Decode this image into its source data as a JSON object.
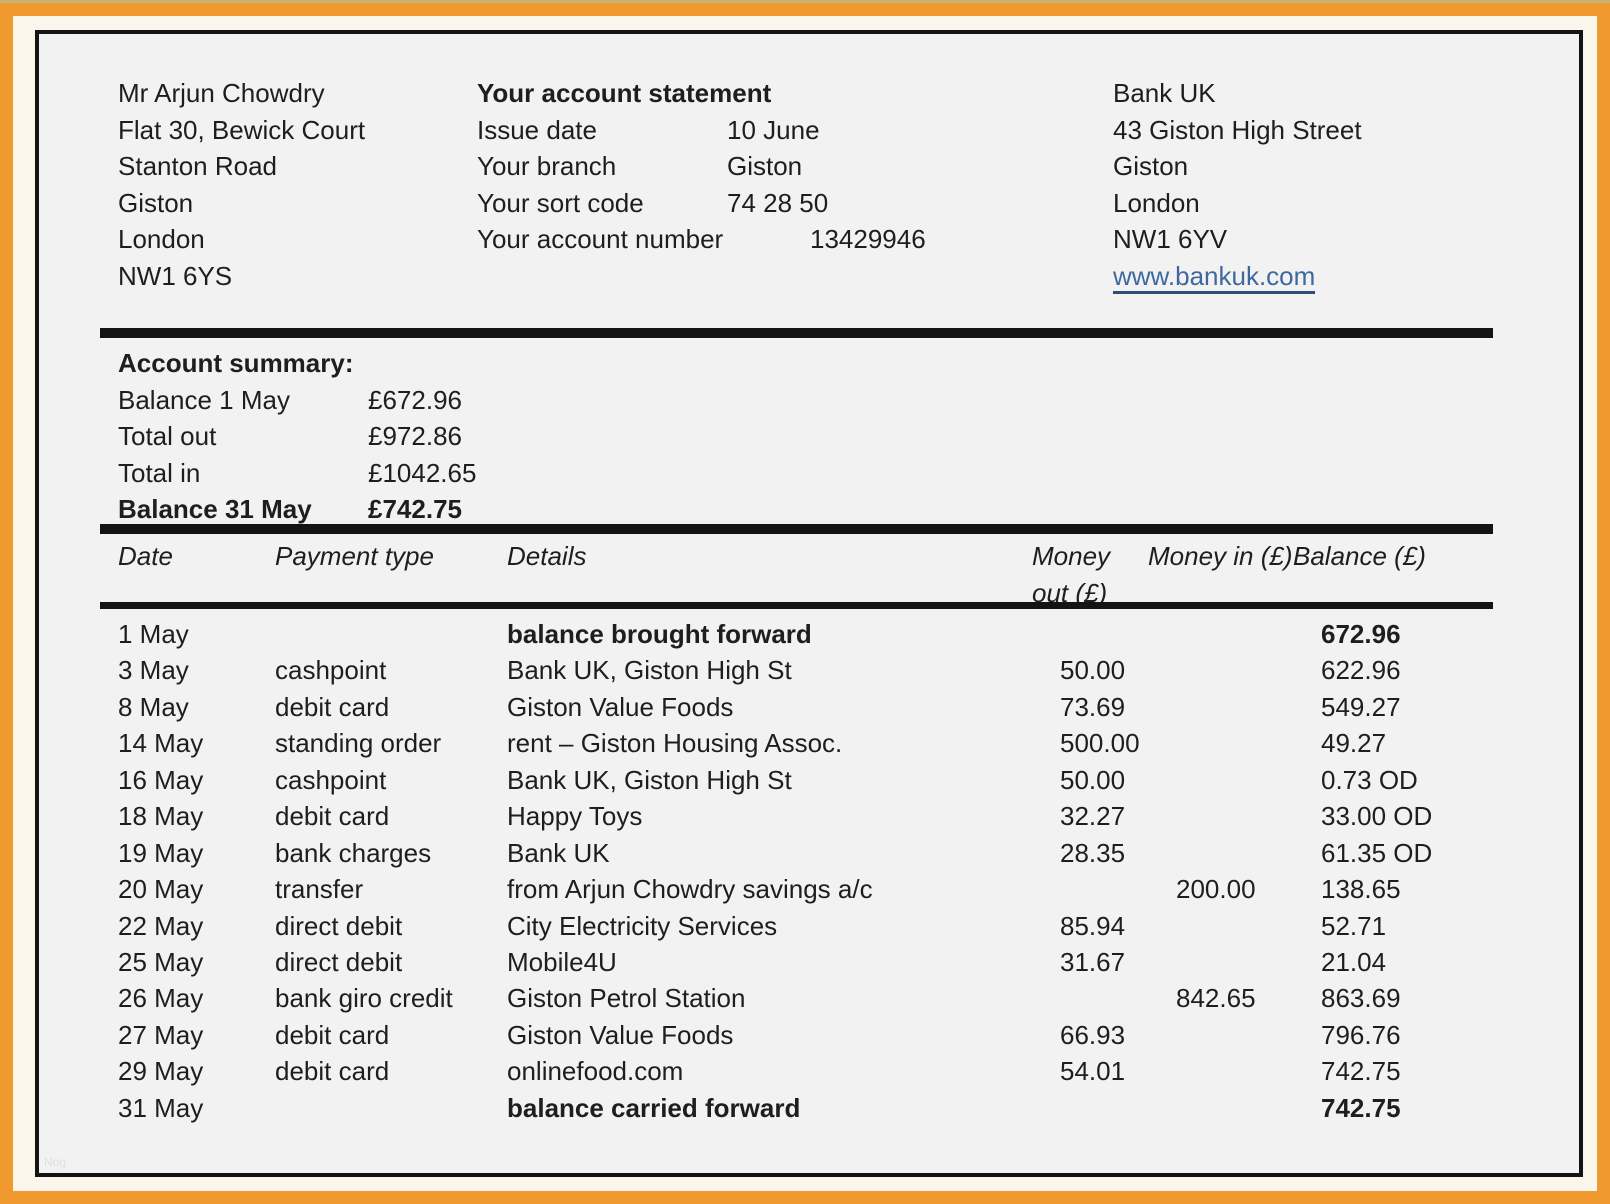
{
  "customer_address": {
    "lines": [
      "Mr Arjun Chowdry",
      "Flat 30, Bewick Court",
      "Stanton Road",
      "Giston",
      "London",
      "NW1 6YS"
    ]
  },
  "statement_info": {
    "title": "Your account statement",
    "rows": [
      {
        "label": "Issue date",
        "value": "10 June"
      },
      {
        "label": "Your branch",
        "value": "Giston"
      },
      {
        "label": "Your sort code",
        "value": "74 28 50"
      },
      {
        "label": "Your account number",
        "value": "13429946"
      }
    ]
  },
  "bank_info": {
    "lines": [
      "Bank UK",
      "43 Giston High Street",
      "Giston",
      "London",
      "NW1 6YV"
    ],
    "website": "www.bankuk.com"
  },
  "account_summary": {
    "title": "Account summary:",
    "rows": [
      {
        "label": "Balance 1 May",
        "value": "£672.96",
        "bold": false
      },
      {
        "label": "Total out",
        "value": "£972.86",
        "bold": false
      },
      {
        "label": "Total in",
        "value": "£1042.65",
        "bold": false
      },
      {
        "label": "Balance 31 May",
        "value": "£742.75",
        "bold": true
      }
    ]
  },
  "transactions": {
    "headers": [
      "Date",
      "Payment type",
      "Details",
      "Money out (£)",
      "Money in (£)",
      "Balance (£)"
    ],
    "rows": [
      {
        "date": "1 May",
        "payment_type": "",
        "details": "balance brought forward",
        "money_out": "",
        "money_in": "",
        "balance": "672.96",
        "emphasis": true
      },
      {
        "date": "3 May",
        "payment_type": "cashpoint",
        "details": "Bank UK, Giston High St",
        "money_out": "50.00",
        "money_in": "",
        "balance": "622.96",
        "emphasis": false
      },
      {
        "date": "8 May",
        "payment_type": "debit card",
        "details": "Giston Value Foods",
        "money_out": "73.69",
        "money_in": "",
        "balance": "549.27",
        "emphasis": false
      },
      {
        "date": "14 May",
        "payment_type": "standing order",
        "details": "rent – Giston Housing Assoc.",
        "money_out": "500.00",
        "money_in": "",
        "balance": "49.27",
        "emphasis": false
      },
      {
        "date": "16 May",
        "payment_type": "cashpoint",
        "details": "Bank UK, Giston High St",
        "money_out": "50.00",
        "money_in": "",
        "balance": "0.73 OD",
        "emphasis": false
      },
      {
        "date": "18 May",
        "payment_type": "debit card",
        "details": "Happy Toys",
        "money_out": "32.27",
        "money_in": "",
        "balance": "33.00 OD",
        "emphasis": false
      },
      {
        "date": "19 May",
        "payment_type": "bank charges",
        "details": "Bank UK",
        "money_out": "28.35",
        "money_in": "",
        "balance": "61.35 OD",
        "emphasis": false
      },
      {
        "date": "20 May",
        "payment_type": "transfer",
        "details": "from Arjun Chowdry savings a/c",
        "money_out": "",
        "money_in": "200.00",
        "balance": "138.65",
        "emphasis": false
      },
      {
        "date": "22 May",
        "payment_type": "direct debit",
        "details": "City Electricity Services",
        "money_out": "85.94",
        "money_in": "",
        "balance": "52.71",
        "emphasis": false
      },
      {
        "date": "25 May",
        "payment_type": "direct debit",
        "details": "Mobile4U",
        "money_out": "31.67",
        "money_in": "",
        "balance": "21.04",
        "emphasis": false
      },
      {
        "date": "26 May",
        "payment_type": "bank giro credit",
        "details": "Giston Petrol Station",
        "money_out": "",
        "money_in": "842.65",
        "balance": "863.69",
        "emphasis": false
      },
      {
        "date": "27 May",
        "payment_type": "debit card",
        "details": "Giston Value Foods",
        "money_out": "66.93",
        "money_in": "",
        "balance": "796.76",
        "emphasis": false
      },
      {
        "date": "29 May",
        "payment_type": "debit card",
        "details": "onlinefood.com",
        "money_out": "54.01",
        "money_in": "",
        "balance": "742.75",
        "emphasis": false
      },
      {
        "date": "31 May",
        "payment_type": "",
        "details": "balance carried forward",
        "money_out": "",
        "money_in": "",
        "balance": "742.75",
        "emphasis": true
      }
    ]
  },
  "watermark": "Nog",
  "colors": {
    "frame_orange": "#EF992F",
    "link_blue": "#3E68A0",
    "content_bg": "#F2F2F2",
    "rule_black": "#141414",
    "text": "#1E1E1E"
  }
}
